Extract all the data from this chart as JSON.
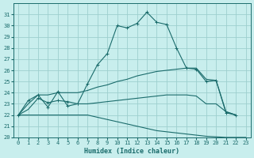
{
  "xlabel": "Humidex (Indice chaleur)",
  "bg_color": "#c8eeed",
  "grid_color": "#9ecfce",
  "line_color": "#1a6b6b",
  "xlim": [
    -0.5,
    23.5
  ],
  "ylim": [
    20,
    32
  ],
  "yticks": [
    20,
    21,
    22,
    23,
    24,
    25,
    26,
    27,
    28,
    29,
    30,
    31
  ],
  "xticks": [
    0,
    1,
    2,
    3,
    4,
    5,
    6,
    7,
    8,
    9,
    10,
    11,
    12,
    13,
    14,
    15,
    16,
    17,
    18,
    19,
    20,
    21,
    22,
    23
  ],
  "line1_x": [
    0,
    1,
    2,
    3,
    4,
    5,
    6,
    7,
    8,
    9,
    10,
    11,
    12,
    13,
    14,
    15,
    16,
    17,
    18,
    19,
    20,
    21,
    22
  ],
  "line1_y": [
    22,
    23.3,
    23.8,
    22.7,
    24.1,
    22.8,
    23.0,
    24.8,
    26.5,
    27.5,
    30.0,
    29.8,
    30.2,
    31.2,
    30.3,
    30.1,
    28.0,
    26.2,
    26.1,
    25.0,
    25.1,
    22.2,
    22.0
  ],
  "line2_x": [
    0,
    1,
    2,
    3,
    4,
    5,
    6,
    7,
    8,
    9,
    10,
    11,
    12,
    13,
    14,
    15,
    16,
    17,
    18,
    19,
    20,
    21,
    22
  ],
  "line2_y": [
    22,
    23.0,
    23.8,
    23.8,
    24.0,
    24.0,
    24.0,
    24.2,
    24.5,
    24.7,
    25.0,
    25.2,
    25.5,
    25.7,
    25.9,
    26.0,
    26.1,
    26.2,
    26.2,
    25.2,
    25.1,
    22.3,
    22.0
  ],
  "line3_x": [
    0,
    1,
    2,
    3,
    4,
    5,
    6,
    7,
    8,
    9,
    10,
    11,
    12,
    13,
    14,
    15,
    16,
    17,
    18,
    19,
    20,
    21,
    22
  ],
  "line3_y": [
    22,
    22.5,
    23.5,
    23.1,
    23.3,
    23.2,
    23.0,
    23.0,
    23.1,
    23.2,
    23.3,
    23.4,
    23.5,
    23.6,
    23.7,
    23.8,
    23.8,
    23.8,
    23.7,
    23.0,
    23.0,
    22.3,
    22.0
  ],
  "line4_x": [
    0,
    1,
    2,
    3,
    4,
    5,
    6,
    7,
    8,
    9,
    10,
    11,
    12,
    13,
    14,
    15,
    16,
    17,
    18,
    19,
    20,
    21,
    22,
    23
  ],
  "line4_y": [
    22,
    22.0,
    22.0,
    22.0,
    22.0,
    22.0,
    22.0,
    22.0,
    21.8,
    21.6,
    21.4,
    21.2,
    21.0,
    20.8,
    20.6,
    20.5,
    20.4,
    20.3,
    20.2,
    20.1,
    20.05,
    20.0,
    20.0,
    20.0
  ]
}
